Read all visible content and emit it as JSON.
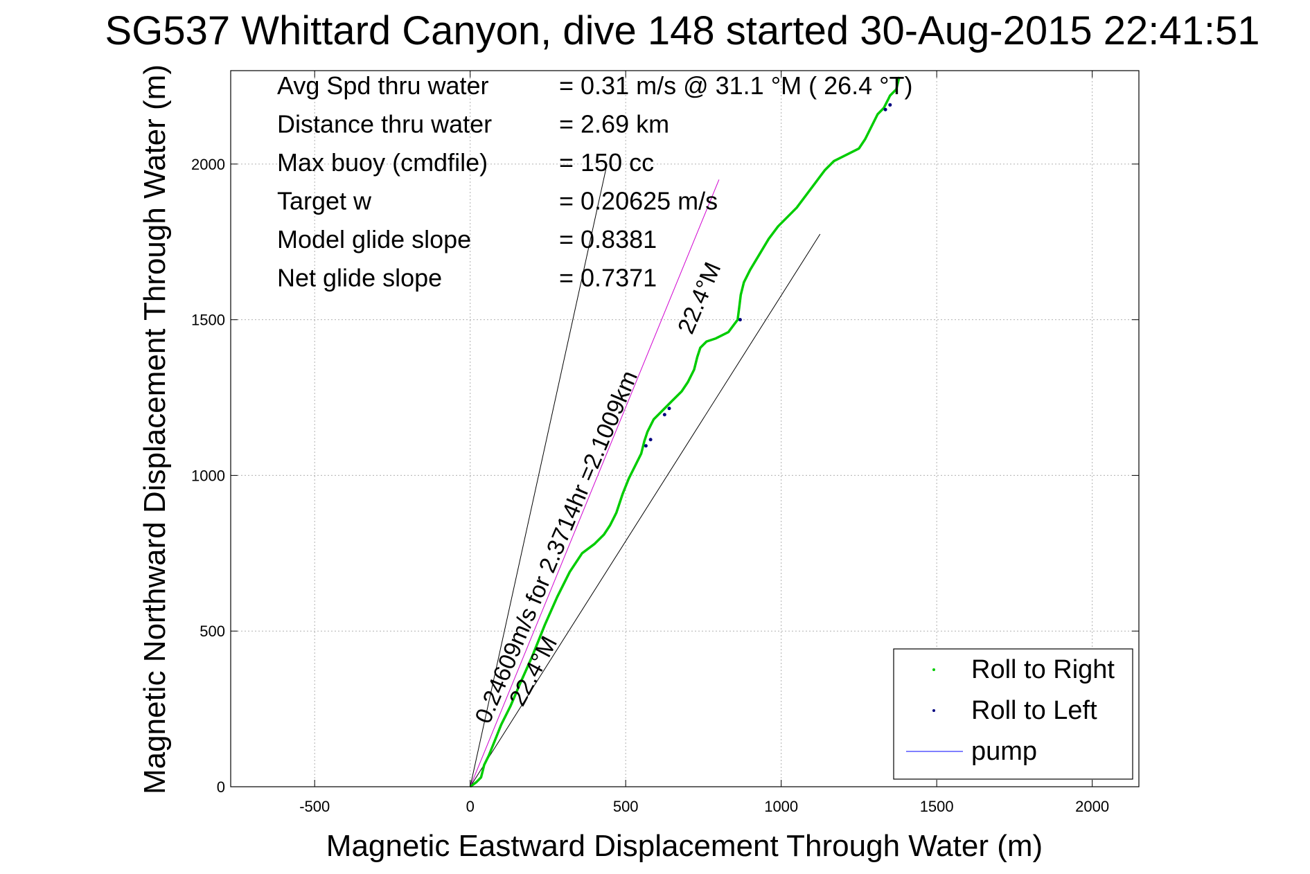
{
  "chart_data": {
    "type": "line",
    "title": "SG537 Whittard Canyon, dive 148 started 30-Aug-2015 22:41:51",
    "xlabel": "Magnetic Eastward Displacement Through Water (m)",
    "ylabel": "Magnetic Northward Displacement Through Water (m)",
    "xlim": [
      -770,
      2150
    ],
    "ylim": [
      0,
      2300
    ],
    "xticks": [
      -500,
      0,
      500,
      1000,
      1500,
      2000
    ],
    "yticks": [
      0,
      500,
      1000,
      1500,
      2000
    ],
    "grid": true,
    "legend_position": "bottom-right",
    "stats": [
      {
        "label": "Avg Spd thru water",
        "value": "=  0.31 m/s @  31.1 °M ( 26.4 °T)"
      },
      {
        "label": "Distance thru water",
        "value": "=  2.69 km"
      },
      {
        "label": "Max buoy (cmdfile)",
        "value": "= 150 cc"
      },
      {
        "label": "Target w",
        "value": "= 0.20625 m/s"
      },
      {
        "label": "Model glide slope",
        "value": "= 0.8381"
      },
      {
        "label": "Net glide slope",
        "value": "= 0.7371"
      }
    ],
    "series": [
      {
        "name": "Roll to Right",
        "color": "#00cc00",
        "x": [
          0,
          20,
          35,
          40,
          45,
          60,
          80,
          100,
          130,
          160,
          200,
          240,
          280,
          320,
          360,
          400,
          430,
          450,
          470,
          490,
          510,
          530,
          550,
          560,
          570,
          590,
          620,
          650,
          680,
          700,
          720,
          730,
          740,
          760,
          790,
          830,
          860,
          865,
          870,
          880,
          900,
          930,
          960,
          990,
          1020,
          1050,
          1080,
          1110,
          1140,
          1170,
          1210,
          1250,
          1270,
          1290,
          1310,
          1330,
          1340,
          1345,
          1350,
          1360,
          1370,
          1375,
          1380
        ],
        "y": [
          0,
          15,
          30,
          50,
          70,
          100,
          150,
          200,
          260,
          330,
          420,
          520,
          610,
          690,
          750,
          780,
          810,
          840,
          880,
          940,
          990,
          1030,
          1070,
          1110,
          1140,
          1180,
          1210,
          1240,
          1270,
          1300,
          1340,
          1380,
          1410,
          1430,
          1440,
          1460,
          1500,
          1540,
          1580,
          1620,
          1660,
          1710,
          1760,
          1800,
          1830,
          1860,
          1900,
          1940,
          1980,
          2010,
          2030,
          2050,
          2080,
          2120,
          2160,
          2180,
          2200,
          2210,
          2220,
          2230,
          2240,
          2260,
          2280
        ]
      },
      {
        "name": "Roll to Left",
        "color": "#000080",
        "x": [
          565,
          580,
          625,
          640,
          868,
          1335,
          1350
        ],
        "y": [
          1095,
          1115,
          1195,
          1215,
          1500,
          2175,
          2190
        ]
      },
      {
        "name": "pump",
        "color": "#0000ff",
        "x": [],
        "y": []
      }
    ],
    "reference_lines": [
      {
        "x": [
          0,
          440
        ],
        "y": [
          0,
          2000
        ],
        "color": "#000000"
      },
      {
        "x": [
          0,
          1125
        ],
        "y": [
          0,
          1775
        ],
        "color": "#000000"
      },
      {
        "x": [
          0,
          800
        ],
        "y": [
          0,
          1950
        ],
        "color": "#d000d0"
      }
    ],
    "annotations": [
      {
        "text": "22.4°M",
        "x": 225,
        "y": 360,
        "angle": -62
      },
      {
        "text": "0.24609m/s for 2.3714hr =2.1009km",
        "x": 300,
        "y": 760,
        "angle": -67
      },
      {
        "text": "22.4°M",
        "x": 760,
        "y": 1560,
        "angle": -67
      }
    ]
  }
}
